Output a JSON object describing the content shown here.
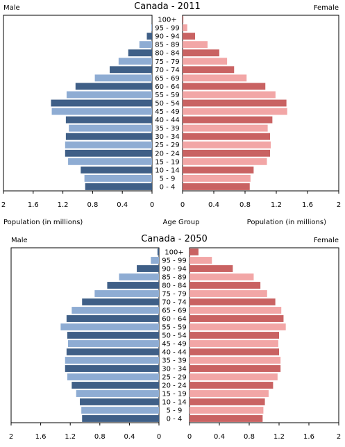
{
  "colors": {
    "male_dark": "#3f5f87",
    "male_light": "#8eacd3",
    "female_dark": "#c96262",
    "female_light": "#f2a6a6"
  },
  "chart_data": [
    {
      "type": "bar",
      "title": "Canada - 2011",
      "left_label": "Male",
      "right_label": "Female",
      "x_axis_label_left": "Population (in millions)",
      "x_axis_label_center": "Age Group",
      "x_axis_label_right": "Population (in millions)",
      "xlim": [
        0,
        2
      ],
      "male_ticks": [
        "2",
        "1.6",
        "1.2",
        "0.8",
        "0.4",
        "0"
      ],
      "female_ticks": [
        "0",
        "0.4",
        "0.8",
        "1.2",
        "1.6",
        "2"
      ],
      "categories": [
        "0 - 4",
        "5 - 9",
        "10 - 14",
        "15 - 19",
        "20 - 24",
        "25 - 29",
        "30 - 34",
        "35 - 39",
        "40 - 44",
        "45 - 49",
        "50 - 54",
        "55 - 59",
        "60 - 64",
        "65 - 69",
        "70 - 74",
        "75 - 79",
        "80 - 84",
        "85 - 89",
        "90 - 94",
        "95 - 99",
        "100+"
      ],
      "series": [
        {
          "name": "Male",
          "values": [
            0.9,
            0.91,
            0.96,
            1.13,
            1.17,
            1.17,
            1.16,
            1.12,
            1.16,
            1.35,
            1.36,
            1.15,
            1.03,
            0.77,
            0.57,
            0.45,
            0.32,
            0.17,
            0.07,
            0.01,
            0.001
          ]
        },
        {
          "name": "Female",
          "values": [
            0.86,
            0.87,
            0.91,
            1.08,
            1.12,
            1.13,
            1.12,
            1.09,
            1.15,
            1.34,
            1.33,
            1.19,
            1.06,
            0.82,
            0.66,
            0.57,
            0.47,
            0.32,
            0.16,
            0.06,
            0.01
          ]
        }
      ]
    },
    {
      "type": "bar",
      "title": "Canada - 2050",
      "left_label": "Male",
      "right_label": "Female",
      "x_axis_label_left": "",
      "x_axis_label_center": "",
      "x_axis_label_right": "",
      "xlim": [
        0,
        2
      ],
      "male_ticks": [
        "2",
        "1.6",
        "1.2",
        "0.8",
        "0.4",
        "0"
      ],
      "female_ticks": [
        "0",
        "0.4",
        "0.8",
        "1.2",
        "1.6",
        "2"
      ],
      "categories": [
        "0 - 4",
        "5 - 9",
        "10 - 14",
        "15 - 19",
        "20 - 24",
        "25 - 29",
        "30 - 34",
        "35 - 39",
        "40 - 44",
        "45 - 49",
        "50 - 54",
        "55 - 59",
        "60 - 64",
        "65 - 69",
        "70 - 74",
        "75 - 79",
        "80 - 84",
        "85 - 89",
        "90 - 94",
        "95 - 99",
        "100+"
      ],
      "series": [
        {
          "name": "Male",
          "values": [
            1.04,
            1.05,
            1.07,
            1.12,
            1.18,
            1.24,
            1.27,
            1.27,
            1.25,
            1.23,
            1.24,
            1.33,
            1.25,
            1.18,
            1.04,
            0.87,
            0.7,
            0.54,
            0.3,
            0.11,
            0.02
          ]
        },
        {
          "name": "Female",
          "values": [
            0.98,
            0.99,
            1.01,
            1.06,
            1.12,
            1.18,
            1.22,
            1.22,
            1.2,
            1.19,
            1.2,
            1.29,
            1.26,
            1.23,
            1.15,
            1.04,
            0.95,
            0.86,
            0.58,
            0.3,
            0.12
          ]
        }
      ]
    }
  ]
}
